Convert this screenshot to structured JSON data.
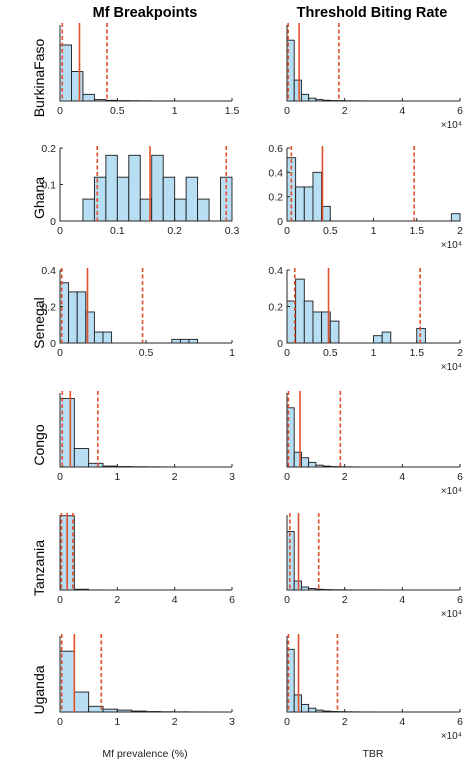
{
  "column_titles": [
    "Mf Breakpoints",
    "Threshold Biting Rate"
  ],
  "row_labels": [
    "BurkinaFaso",
    "Ghana",
    "Senegal",
    "Congo",
    "Tanzania",
    "Uganda"
  ],
  "x_labels": [
    "Mf prevalence (%)",
    "TBR"
  ],
  "colors": {
    "bar_fill": "#b8def4",
    "bar_edge": "#1a1a1a",
    "median_line": "#e2502a",
    "ci_line": "#e2502a"
  },
  "chart_data": [
    {
      "type": "bar",
      "country": "BurkinaFaso",
      "panel": "Mf Breakpoints",
      "bin_edges": [
        0,
        0.1,
        0.2,
        0.3,
        0.4,
        0.5,
        0.6,
        0.7,
        0.8,
        0.9,
        1.0
      ],
      "values": [
        0.59,
        0.31,
        0.07,
        0.015,
        0.007,
        0.004,
        0.003,
        0.002,
        0.001,
        0.001
      ],
      "xlim": [
        0,
        1.5
      ],
      "ylim": [
        0,
        0.8
      ],
      "xticks": [
        "0",
        "0.5",
        "1",
        "1.5"
      ],
      "yticks": [],
      "x_multiplier": "",
      "median": 0.17,
      "ci": [
        0.02,
        0.41
      ]
    },
    {
      "type": "bar",
      "country": "BurkinaFaso",
      "panel": "Threshold Biting Rate",
      "bin_edges": [
        0,
        2500,
        5000,
        7500,
        10000,
        12500,
        15000,
        17500,
        20000,
        22500,
        25000,
        27500,
        30000,
        32500,
        35000,
        37500,
        40000
      ],
      "values": [
        0.64,
        0.22,
        0.07,
        0.03,
        0.015,
        0.008,
        0.005,
        0.004,
        0.003,
        0.002,
        0.002,
        0.001,
        0.001,
        0.001,
        0.001,
        0.001
      ],
      "xlim": [
        0,
        60000
      ],
      "ylim": [
        0,
        0.8
      ],
      "xticks": [
        "0",
        "2",
        "4",
        "6"
      ],
      "yticks": [],
      "x_multiplier": "×10⁴",
      "median": 4200,
      "ci": [
        400,
        18000
      ]
    },
    {
      "type": "bar",
      "country": "Ghana",
      "panel": "Mf Breakpoints",
      "bin_edges": [
        0.04,
        0.06,
        0.08,
        0.1,
        0.12,
        0.14,
        0.16,
        0.18,
        0.2,
        0.22,
        0.24,
        0.26,
        0.28,
        0.3
      ],
      "values": [
        0.06,
        0.12,
        0.18,
        0.12,
        0.18,
        0.06,
        0.18,
        0.12,
        0.06,
        0.12,
        0.06,
        0.0,
        0.12
      ],
      "xlim": [
        0,
        0.3
      ],
      "ylim": [
        0,
        0.2
      ],
      "xticks": [
        "0",
        "0.1",
        "0.2",
        "0.3"
      ],
      "yticks": [
        "0",
        "0.1",
        "0.2"
      ],
      "x_multiplier": "",
      "median": 0.157,
      "ci": [
        0.065,
        0.29
      ]
    },
    {
      "type": "bar",
      "country": "Ghana",
      "panel": "Threshold Biting Rate",
      "bin_edges": [
        0,
        1000,
        2000,
        3000,
        4000,
        5000,
        6000,
        7000,
        8000,
        9000,
        10000,
        11000,
        12000,
        13000,
        14000,
        15000,
        16000,
        17000,
        18000,
        19000,
        20000
      ],
      "values": [
        0.52,
        0.28,
        0.28,
        0.4,
        0.12,
        0,
        0,
        0,
        0,
        0,
        0,
        0,
        0,
        0,
        0,
        0,
        0,
        0,
        0,
        0.06
      ],
      "xlim": [
        0,
        20000
      ],
      "ylim": [
        0,
        0.6
      ],
      "xticks": [
        "0",
        "0.5",
        "1",
        "1.5",
        "2"
      ],
      "yticks": [
        "0",
        "0.2",
        "0.4",
        "0.6"
      ],
      "x_multiplier": "×10⁴",
      "median": 4100,
      "ci": [
        500,
        14700
      ]
    },
    {
      "type": "bar",
      "country": "Senegal",
      "panel": "Mf Breakpoints",
      "bin_edges": [
        0,
        0.05,
        0.1,
        0.15,
        0.2,
        0.25,
        0.3,
        0.35,
        0.4,
        0.45,
        0.5,
        0.55,
        0.6,
        0.65,
        0.7,
        0.75,
        0.8,
        0.85
      ],
      "values": [
        0.33,
        0.28,
        0.28,
        0.17,
        0.06,
        0.06,
        0.0,
        0.0,
        0.0,
        0.0,
        0.0,
        0.0,
        0.0,
        0.02,
        0.02,
        0.02,
        0.0
      ],
      "xlim": [
        0,
        1
      ],
      "ylim": [
        0,
        0.4
      ],
      "xticks": [
        "0",
        "0.5",
        "1"
      ],
      "yticks": [
        "0",
        "0.2",
        "0.4"
      ],
      "x_multiplier": "",
      "median": 0.16,
      "ci": [
        0.01,
        0.48
      ]
    },
    {
      "type": "bar",
      "country": "Senegal",
      "panel": "Threshold Biting Rate",
      "bin_edges": [
        0,
        1000,
        2000,
        3000,
        4000,
        5000,
        6000,
        7000,
        8000,
        9000,
        10000,
        11000,
        12000,
        13000,
        14000,
        15000,
        16000
      ],
      "values": [
        0.23,
        0.35,
        0.23,
        0.17,
        0.17,
        0.12,
        0.0,
        0.0,
        0.0,
        0.0,
        0.04,
        0.06,
        0.0,
        0.0,
        0.0,
        0.08
      ],
      "xlim": [
        0,
        20000
      ],
      "ylim": [
        0,
        0.4
      ],
      "xticks": [
        "0",
        "0.5",
        "1",
        "1.5",
        "2"
      ],
      "yticks": [
        "0",
        "0.2",
        "0.4"
      ],
      "x_multiplier": "×10⁴",
      "median": 4800,
      "ci": [
        900,
        15400
      ]
    },
    {
      "type": "bar",
      "country": "Congo",
      "panel": "Mf Breakpoints",
      "bin_edges": [
        0,
        0.25,
        0.5,
        0.75,
        1.0,
        1.25,
        1.5,
        1.75,
        2.0
      ],
      "values": [
        0.74,
        0.2,
        0.04,
        0.01,
        0.005,
        0.003,
        0.002,
        0.001
      ],
      "xlim": [
        0,
        3
      ],
      "ylim": [
        0,
        0.8
      ],
      "xticks": [
        "0",
        "1",
        "2",
        "3"
      ],
      "yticks": [],
      "x_multiplier": "",
      "median": 0.18,
      "ci": [
        0.04,
        0.66
      ]
    },
    {
      "type": "bar",
      "country": "Congo",
      "panel": "Threshold Biting Rate",
      "bin_edges": [
        0,
        2500,
        5000,
        7500,
        10000,
        12500,
        15000,
        17500,
        20000,
        22500,
        25000
      ],
      "values": [
        0.64,
        0.16,
        0.1,
        0.05,
        0.02,
        0.01,
        0.005,
        0.003,
        0.002,
        0.001
      ],
      "xlim": [
        0,
        60000
      ],
      "ylim": [
        0,
        0.8
      ],
      "xticks": [
        "0",
        "2",
        "4",
        "6"
      ],
      "yticks": [],
      "x_multiplier": "×10⁴",
      "median": 4500,
      "ci": [
        500,
        18500
      ]
    },
    {
      "type": "bar",
      "country": "Tanzania",
      "panel": "Mf Breakpoints",
      "bin_edges": [
        0,
        0.5,
        1.0,
        1.5,
        2.0
      ],
      "values": [
        0.99,
        0.01,
        0.001,
        0.0
      ],
      "xlim": [
        0,
        6
      ],
      "ylim": [
        0,
        1
      ],
      "xticks": [
        "0",
        "2",
        "4",
        "6"
      ],
      "yticks": [],
      "x_multiplier": "",
      "median": 0.25,
      "ci": [
        0.05,
        0.45
      ]
    },
    {
      "type": "bar",
      "country": "Tanzania",
      "panel": "Threshold Biting Rate",
      "bin_edges": [
        0,
        2500,
        5000,
        7500,
        10000,
        12500,
        15000,
        17500,
        20000,
        22500,
        25000,
        27500,
        30000,
        32500,
        35000
      ],
      "values": [
        0.78,
        0.12,
        0.04,
        0.02,
        0.01,
        0.006,
        0.004,
        0.003,
        0.002,
        0.001,
        0.001,
        0.001,
        0.001,
        0.0
      ],
      "xlim": [
        0,
        60000
      ],
      "ylim": [
        0,
        1
      ],
      "xticks": [
        "0",
        "2",
        "4",
        "6"
      ],
      "yticks": [],
      "x_multiplier": "×10⁴",
      "median": 4000,
      "ci": [
        1000,
        11000
      ]
    },
    {
      "type": "bar",
      "country": "Uganda",
      "panel": "Mf Breakpoints",
      "bin_edges": [
        0,
        0.25,
        0.5,
        0.75,
        1.0,
        1.25,
        1.5,
        1.75,
        2.0,
        2.25,
        2.5
      ],
      "values": [
        0.64,
        0.21,
        0.06,
        0.03,
        0.02,
        0.01,
        0.005,
        0.003,
        0.002,
        0.001
      ],
      "xlim": [
        0,
        3
      ],
      "ylim": [
        0,
        0.8
      ],
      "xticks": [
        "0",
        "1",
        "2",
        "3"
      ],
      "yticks": [],
      "x_multiplier": "",
      "median": 0.25,
      "ci": [
        0.03,
        0.72
      ]
    },
    {
      "type": "bar",
      "country": "Uganda",
      "panel": "Threshold Biting Rate",
      "bin_edges": [
        0,
        2500,
        5000,
        7500,
        10000,
        12500,
        15000,
        17500,
        20000,
        22500,
        25000,
        27500,
        30000
      ],
      "values": [
        0.66,
        0.18,
        0.08,
        0.04,
        0.02,
        0.01,
        0.006,
        0.004,
        0.003,
        0.002,
        0.001,
        0.001
      ],
      "xlim": [
        0,
        60000
      ],
      "ylim": [
        0,
        0.8
      ],
      "xticks": [
        "0",
        "2",
        "4",
        "6"
      ],
      "yticks": [],
      "x_multiplier": "×10⁴",
      "median": 4000,
      "ci": [
        500,
        17500
      ]
    }
  ]
}
